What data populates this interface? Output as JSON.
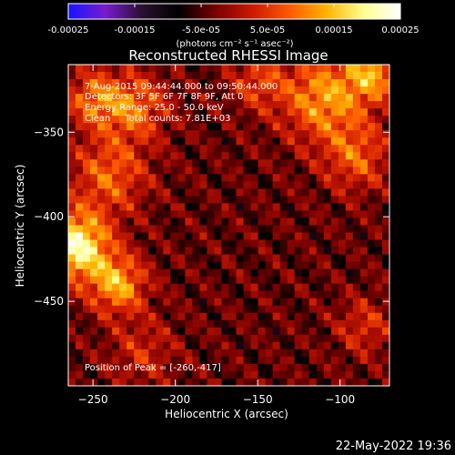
{
  "window": {
    "footer_timestamp": "22-May-2022 19:36"
  },
  "colorbar": {
    "units_label": "(photons cm⁻² s⁻¹ asec⁻²)",
    "tick_labels": [
      "-0.00025",
      "-0.00015",
      "-5.0e-05",
      "5.0e-05",
      "0.00015",
      "0.00025"
    ],
    "range": [
      -0.00025,
      0.00025
    ],
    "stops": [
      "#1515ff",
      "#7a1bd0",
      "#2a1030",
      "#000000",
      "#7a0000",
      "#cc1a00",
      "#ff5a00",
      "#ffb400",
      "#ffff90",
      "#ffffff"
    ]
  },
  "annotations": {
    "time_range": "7-Aug-2015 09:44:44.000 to 09:50:44.000",
    "detectors": "Detectors: 3F 5F 6F 7F 8F 9F, Att 0",
    "energy": "Energy Range: 25.0 - 50.0 keV",
    "clean": "Clean     Total counts: 7.81E+03",
    "peak": "Position of Peak = [-260,-417]"
  },
  "chart_data": {
    "type": "heatmap",
    "title": "Reconstructed RHESSI Image",
    "xlabel": "Heliocentric X (arcsec)",
    "ylabel": "Heliocentric Y (arcsec)",
    "xlim": [
      -265,
      -70
    ],
    "ylim": [
      -500,
      -310
    ],
    "x_ticks": [
      -250,
      -200,
      -150,
      -100
    ],
    "y_ticks": [
      -350,
      -400,
      -450
    ],
    "x_tick_labels": [
      "−250",
      "−200",
      "−150",
      "−100"
    ],
    "y_tick_labels": [
      "−350",
      "−400",
      "−450"
    ],
    "value_range": [
      -0.00025,
      0.00025
    ],
    "peak_position": [
      -260,
      -417
    ],
    "features": [
      {
        "x": -260,
        "y": -417,
        "intensity": 0.00025,
        "sigma": 14
      },
      {
        "x": -235,
        "y": -440,
        "intensity": 0.00017,
        "sigma": 12
      },
      {
        "x": -240,
        "y": -375,
        "intensity": 0.00012,
        "sigma": 16
      },
      {
        "x": -225,
        "y": -335,
        "intensity": 0.00013,
        "sigma": 14
      },
      {
        "x": -250,
        "y": -330,
        "intensity": 0.00012,
        "sigma": 12
      },
      {
        "x": -110,
        "y": -330,
        "intensity": 0.00016,
        "sigma": 18
      },
      {
        "x": -80,
        "y": -315,
        "intensity": 0.00015,
        "sigma": 12
      },
      {
        "x": -90,
        "y": -365,
        "intensity": 0.00011,
        "sigma": 14
      },
      {
        "x": -150,
        "y": -320,
        "intensity": 9e-05,
        "sigma": 12
      },
      {
        "x": -85,
        "y": -465,
        "intensity": 8e-05,
        "sigma": 12
      },
      {
        "x": -220,
        "y": -480,
        "intensity": 7e-05,
        "sigma": 14
      }
    ]
  }
}
